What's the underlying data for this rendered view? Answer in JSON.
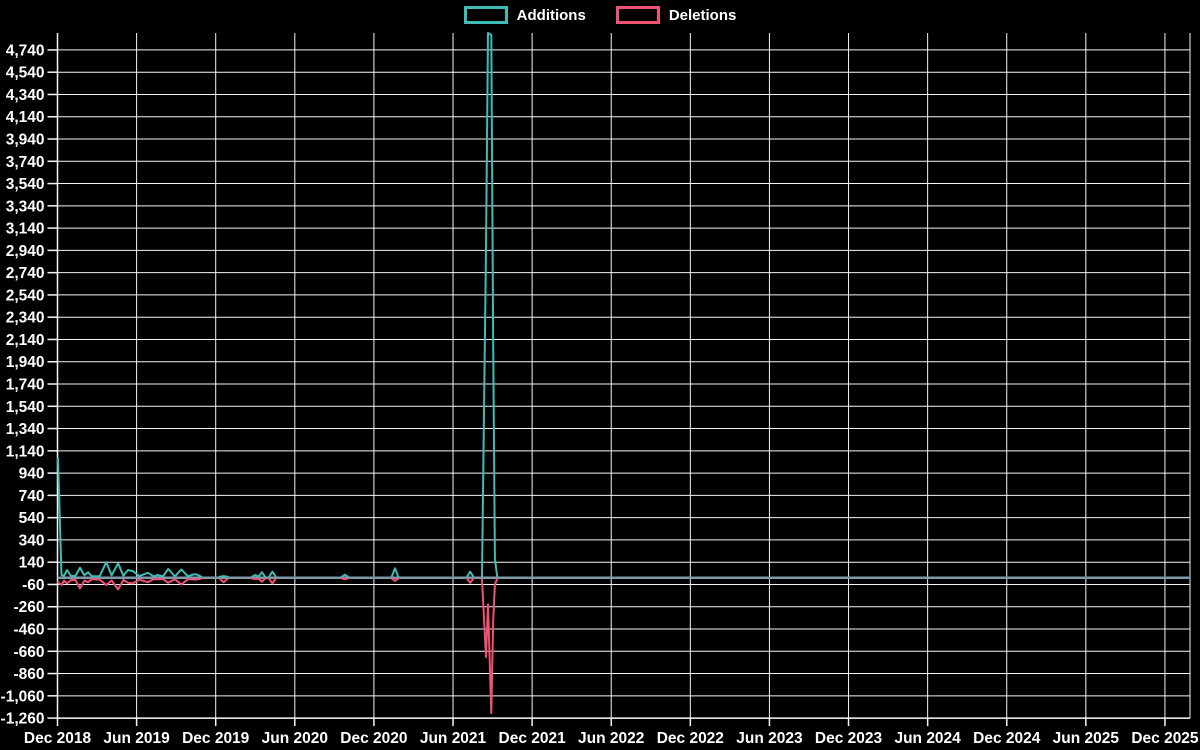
{
  "legend": {
    "items": [
      {
        "label": "Additions",
        "color": "#3fbcb6"
      },
      {
        "label": "Deletions",
        "color": "#ef5272"
      }
    ]
  },
  "chart_data": {
    "type": "line",
    "grid": true,
    "legend_position": "top-center",
    "background_color": "#000000",
    "grid_color": "#f5f5f5",
    "text_color": "#ffffff",
    "zero_line_color": "#8098a8",
    "x_unit": "months since Dec 2018",
    "xlim": [
      0,
      85.9
    ],
    "ylim": [
      -1260,
      4892
    ],
    "x_tick_months": [
      0,
      6,
      12,
      18,
      24,
      30,
      36,
      42,
      48,
      54,
      60,
      66,
      72,
      78,
      84
    ],
    "x_tick_labels": [
      "Dec 2018",
      "Jun 2019",
      "Dec 2019",
      "Jun 2020",
      "Dec 2020",
      "Jun 2021",
      "Dec 2021",
      "Jun 2022",
      "Dec 2022",
      "Jun 2023",
      "Dec 2023",
      "Jun 2024",
      "Dec 2024",
      "Jun 2025",
      "Dec 2025"
    ],
    "y_ticks": [
      4740,
      4540,
      4340,
      4140,
      3940,
      3740,
      3540,
      3340,
      3140,
      2940,
      2740,
      2540,
      2340,
      2140,
      1940,
      1740,
      1540,
      1340,
      1140,
      940,
      740,
      540,
      340,
      140,
      -60,
      -260,
      -460,
      -660,
      -860,
      -1060,
      -1260
    ],
    "y_tick_labels": [
      "4,740",
      "4,540",
      "4,340",
      "4,140",
      "3,940",
      "3,740",
      "3,540",
      "3,340",
      "3,140",
      "2,940",
      "2,740",
      "2,540",
      "2,340",
      "2,140",
      "1,940",
      "1,740",
      "1,540",
      "1,340",
      "1,140",
      "940",
      "740",
      "540",
      "340",
      "140",
      "-60",
      "-260",
      "-460",
      "-660",
      "-860",
      "-1,060",
      "-1,260"
    ],
    "series": [
      {
        "name": "Additions",
        "color": "#3fbcb6",
        "points": [
          [
            0.04,
            1075
          ],
          [
            0.3,
            25
          ],
          [
            0.5,
            18
          ],
          [
            0.72,
            70
          ],
          [
            1.0,
            20
          ],
          [
            1.35,
            15
          ],
          [
            1.71,
            90
          ],
          [
            2.05,
            22
          ],
          [
            2.31,
            50
          ],
          [
            2.6,
            14
          ],
          [
            3.2,
            14
          ],
          [
            3.7,
            140
          ],
          [
            4.1,
            22
          ],
          [
            4.6,
            130
          ],
          [
            5.0,
            18
          ],
          [
            5.35,
            70
          ],
          [
            5.73,
            60
          ],
          [
            6.2,
            15
          ],
          [
            6.86,
            45
          ],
          [
            7.3,
            12
          ],
          [
            7.6,
            25
          ],
          [
            8.0,
            12
          ],
          [
            8.4,
            80
          ],
          [
            8.9,
            12
          ],
          [
            9.4,
            75
          ],
          [
            9.9,
            12
          ],
          [
            10.3,
            30
          ],
          [
            10.55,
            30
          ],
          [
            10.9,
            10
          ],
          null,
          [
            12.3,
            10
          ],
          [
            12.6,
            15
          ],
          [
            12.9,
            10
          ],
          null,
          [
            14.75,
            8
          ],
          [
            15.0,
            25
          ],
          [
            15.25,
            10
          ],
          [
            15.5,
            50
          ],
          [
            15.75,
            10
          ],
          null,
          [
            16.05,
            10
          ],
          [
            16.3,
            55
          ],
          [
            16.55,
            10
          ],
          null,
          [
            21.55,
            8
          ],
          [
            21.8,
            28
          ],
          [
            22.05,
            8
          ],
          null,
          [
            25.35,
            8
          ],
          [
            25.6,
            85
          ],
          [
            25.85,
            8
          ],
          null,
          [
            31.05,
            8
          ],
          [
            31.3,
            55
          ],
          [
            31.55,
            8
          ],
          null,
          [
            32.2,
            12
          ],
          [
            32.5,
            2950
          ],
          [
            32.65,
            4892
          ],
          [
            32.9,
            4875
          ],
          [
            33.05,
            2100
          ],
          [
            33.18,
            170
          ],
          [
            33.35,
            12
          ]
        ]
      },
      {
        "name": "Deletions",
        "color": "#ef5272",
        "points": [
          [
            0.04,
            -40
          ],
          [
            0.3,
            -65
          ],
          [
            0.5,
            -25
          ],
          [
            0.72,
            -50
          ],
          [
            1.0,
            -22
          ],
          [
            1.35,
            -18
          ],
          [
            1.71,
            -95
          ],
          [
            2.05,
            -24
          ],
          [
            2.31,
            -40
          ],
          [
            2.6,
            -14
          ],
          [
            3.2,
            -16
          ],
          [
            3.7,
            -65
          ],
          [
            4.1,
            -24
          ],
          [
            4.6,
            -105
          ],
          [
            5.0,
            -20
          ],
          [
            5.35,
            -45
          ],
          [
            5.73,
            -50
          ],
          [
            6.2,
            -16
          ],
          [
            6.86,
            -40
          ],
          [
            7.3,
            -12
          ],
          [
            7.6,
            -14
          ],
          [
            8.0,
            -12
          ],
          [
            8.4,
            -45
          ],
          [
            8.9,
            -12
          ],
          [
            9.4,
            -60
          ],
          [
            9.9,
            -12
          ],
          [
            10.3,
            -15
          ],
          [
            10.55,
            -15
          ],
          [
            10.9,
            -8
          ],
          null,
          [
            12.3,
            -8
          ],
          [
            12.6,
            -40
          ],
          [
            12.9,
            -8
          ],
          null,
          [
            14.75,
            -6
          ],
          [
            15.0,
            -10
          ],
          [
            15.25,
            -8
          ],
          [
            15.5,
            -35
          ],
          [
            15.75,
            -8
          ],
          null,
          [
            16.05,
            -8
          ],
          [
            16.3,
            -50
          ],
          [
            16.55,
            -8
          ],
          null,
          [
            21.55,
            -5
          ],
          [
            21.8,
            -14
          ],
          [
            22.05,
            -5
          ],
          null,
          [
            25.35,
            -6
          ],
          [
            25.6,
            -28
          ],
          [
            25.85,
            -6
          ],
          null,
          [
            31.05,
            -6
          ],
          [
            31.3,
            -45
          ],
          [
            31.55,
            -6
          ],
          null,
          [
            32.2,
            -12
          ],
          [
            32.5,
            -710
          ],
          [
            32.65,
            -240
          ],
          [
            32.9,
            -1215
          ],
          [
            33.05,
            -380
          ],
          [
            33.18,
            -60
          ],
          [
            33.35,
            -10
          ]
        ]
      }
    ]
  }
}
